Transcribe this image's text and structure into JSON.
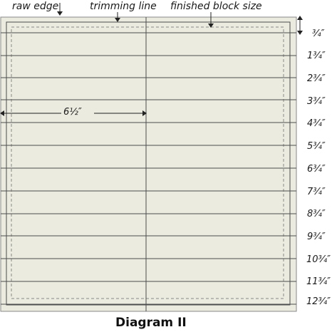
{
  "labels": {
    "raw_edge": "raw edge",
    "trimming_line": "trimming line",
    "finished_block_size": "finished block size"
  },
  "horizontal_measure": "6½″",
  "measurements": [
    "¾″",
    "1¾″",
    "2¾″",
    "3¾″",
    "4¾″",
    "5¾″",
    "6¾″",
    "7¾″",
    "8¾″",
    "9¾″",
    "10¾″",
    "11¾″",
    "12¾″"
  ],
  "caption": "Diagram II",
  "colors": {
    "block_fill": "#ebebdf",
    "line": "#4d4d4d",
    "dashed": "#8a8a8a"
  }
}
